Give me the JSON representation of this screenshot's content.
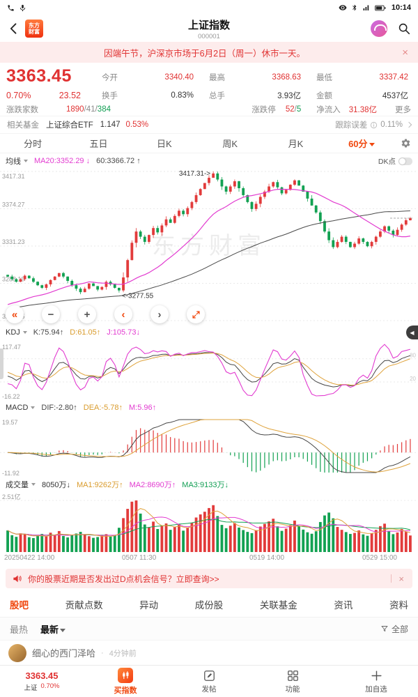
{
  "status_bar": {
    "time": "10:14"
  },
  "header": {
    "logo_line1": "东方",
    "logo_line2": "财富",
    "title": "上证指数",
    "code": "000001"
  },
  "notice": {
    "text": "因端午节，沪深京市场于6月2日（周一）休市一天。",
    "close": "×"
  },
  "quote": {
    "price": "3363.45",
    "pct": "0.70%",
    "chg": "23.52",
    "open_label": "今开",
    "open": "3340.40",
    "high_label": "最高",
    "high": "3368.63",
    "low_label": "最低",
    "low": "3337.42",
    "turnover_label": "换手",
    "turnover": "0.83%",
    "vol_label": "总手",
    "vol": "3.93亿",
    "amount_label": "金额",
    "amount": "4537亿",
    "adv_label": "涨跌家数",
    "adv_up": "1890",
    "sep": "/",
    "adv_flat": "41",
    "adv_down": "384",
    "limit_label": "涨跌停",
    "limit_up": "52",
    "limit_down": "5",
    "inflow_label": "净流入",
    "inflow": "31.38亿",
    "more": "更多"
  },
  "fund": {
    "label": "相关基金",
    "name": "上证综合ETF",
    "value": "1.147",
    "pct": "0.53%",
    "err_label": "跟踪误差",
    "err": "0.11%"
  },
  "period_tabs": {
    "items": [
      "分时",
      "五日",
      "日K",
      "周K",
      "月K"
    ],
    "active": "60分"
  },
  "ma_header": {
    "name": "均线",
    "ma20": "MA20:3352.29",
    "ma20_dir": "↓",
    "ma60": "60:3366.72",
    "ma60_dir": "↑",
    "dk": "DK点"
  },
  "kdj_header": {
    "name": "KDJ",
    "k": "K:75.94",
    "k_dir": "↑",
    "d": "D:61.05",
    "d_dir": "↑",
    "j": "J:105.73",
    "j_dir": "↓"
  },
  "macd_header": {
    "name": "MACD",
    "dif": "DIF:-2.80",
    "dif_dir": "↑",
    "dea": "DEA:-5.78",
    "dea_dir": "↑",
    "m": "M:5.96",
    "m_dir": "↑"
  },
  "vol_header": {
    "name": "成交量",
    "vol": "8050万",
    "vol_dir": "↓",
    "ma1": "MA1:9262万",
    "ma1_dir": "↑",
    "ma2": "MA2:8690万",
    "ma2_dir": "↑",
    "ma3": "MA3:9133万",
    "ma3_dir": "↓"
  },
  "chart_toolbar": {
    "collapse": "«",
    "zoom_out": "−",
    "zoom_in": "+",
    "prev": "‹",
    "next": "›"
  },
  "panel_handle": "◀",
  "watermark": "东方财富",
  "promo": {
    "text": "你的股票近期是否发出过D点机会信号？立即查询>>",
    "close": "×"
  },
  "content_tabs": {
    "items": [
      "股吧",
      "贡献点数",
      "异动",
      "成份股",
      "关联基金",
      "资讯",
      "资料"
    ]
  },
  "filter": {
    "hot": "最热",
    "new": "最新",
    "all": "全部"
  },
  "post": {
    "author": "细心的西门泽哈",
    "sep": "·",
    "time": "4分钟前"
  },
  "bottom_nav": {
    "index_price": "3363.45",
    "index_name": "上证",
    "index_pct": "0.70%",
    "buy": "买指数",
    "post": "发帖",
    "func": "功能",
    "watch": "加自选"
  },
  "chart_data": {
    "type": "candlestick+indicators",
    "period": "60min",
    "y_axis": {
      "min": 3245.15,
      "max": 3417.31,
      "labels": [
        "3417.31",
        "3374.27",
        "3331.23",
        "3288.19",
        "3245.15"
      ]
    },
    "x_labels": [
      "20250422 14:00",
      "0507 11:30",
      "0519 14:00",
      "0529 15:00"
    ],
    "annotations": {
      "high": {
        "index": 48,
        "value": 3417.31,
        "text": "3417.31->"
      },
      "low": {
        "index": 26,
        "value": 3277.55,
        "text": "<-3277.55"
      }
    },
    "candles": {
      "first_open": 3298.0,
      "pre_closes": [
        3240,
        3242,
        3241,
        3244,
        3246,
        3245,
        3248,
        3250,
        3249,
        3252,
        3251,
        3253,
        3255,
        3254,
        3256,
        3258,
        3257,
        3259,
        3261,
        3260,
        3258,
        3256,
        3258,
        3260,
        3262,
        3261,
        3259,
        3257,
        3259,
        3261,
        3263,
        3262,
        3260,
        3258,
        3260,
        3262,
        3264,
        3263,
        3261,
        3259,
        3261,
        3263,
        3265,
        3264,
        3262,
        3260,
        3262,
        3264,
        3263,
        3261,
        3259,
        3261,
        3263,
        3262,
        3260,
        3262,
        3264,
        3263,
        3261,
        3260
      ],
      "closes": [
        3296,
        3293,
        3290,
        3293,
        3297,
        3294,
        3290,
        3286,
        3283,
        3287,
        3292,
        3296,
        3300,
        3296,
        3291,
        3286,
        3282,
        3278,
        3282,
        3288,
        3285,
        3281,
        3284,
        3290,
        3287,
        3283,
        3280,
        3295,
        3315,
        3335,
        3348,
        3342,
        3336,
        3344,
        3352,
        3347,
        3355,
        3362,
        3358,
        3366,
        3372,
        3368,
        3375,
        3382,
        3390,
        3397,
        3404,
        3410,
        3415,
        3408,
        3400,
        3394,
        3400,
        3406,
        3398,
        3390,
        3382,
        3374,
        3380,
        3388,
        3394,
        3400,
        3405,
        3399,
        3392,
        3396,
        3402,
        3407,
        3401,
        3394,
        3386,
        3378,
        3370,
        3360,
        3348,
        3338,
        3330,
        3336,
        3342,
        3336,
        3330,
        3334,
        3340,
        3336,
        3331,
        3336,
        3342,
        3348,
        3354,
        3349,
        3344,
        3350,
        3356,
        3361,
        3363.45
      ]
    },
    "volumes": [
      10500,
      8200,
      7400,
      9100,
      8600,
      7200,
      6800,
      7900,
      8800,
      7600,
      9400,
      8100,
      10200,
      7800,
      7100,
      8300,
      9000,
      9800,
      8500,
      7700,
      6900,
      7300,
      8000,
      8700,
      7500,
      8200,
      11800,
      16500,
      21000,
      24500,
      25100,
      18700,
      13400,
      12100,
      14800,
      11200,
      12600,
      13900,
      10800,
      12300,
      13500,
      10400,
      11700,
      14200,
      16800,
      18300,
      19600,
      21400,
      22800,
      17500,
      13200,
      11600,
      12800,
      14100,
      11900,
      10700,
      9800,
      9200,
      10600,
      12400,
      13700,
      14900,
      16200,
      12500,
      10300,
      11400,
      13100,
      15300,
      12700,
      10900,
      9600,
      8900,
      10100,
      14600,
      17800,
      19200,
      16400,
      12200,
      10800,
      9700,
      8800,
      9300,
      10500,
      8600,
      7900,
      9100,
      10800,
      12600,
      13800,
      10200,
      8700,
      9500,
      11200,
      9800,
      8050
    ],
    "vol_axis": {
      "max_label": "2.51亿",
      "max": 25100
    },
    "kdj_axis": {
      "min": -16.22,
      "max": 117.47,
      "top_label": "117.47",
      "bottom_label": "-16.22",
      "grid": [
        80,
        20
      ]
    },
    "macd_axis": {
      "min": -11.92,
      "max": 19.57,
      "top_label": "19.57",
      "bottom_label": "-11.92"
    },
    "colors": {
      "up": "#e23b3b",
      "down": "#12a152",
      "ma20": "#e23bd0",
      "ma60": "#4a4a4a",
      "k": "#444444",
      "d": "#dfa33c",
      "j": "#e23bd0",
      "dif": "#444444",
      "dea": "#dfa33c",
      "volma1": "#dfa33c",
      "volma2": "#e23bd0",
      "volma3": "#12a152"
    }
  }
}
